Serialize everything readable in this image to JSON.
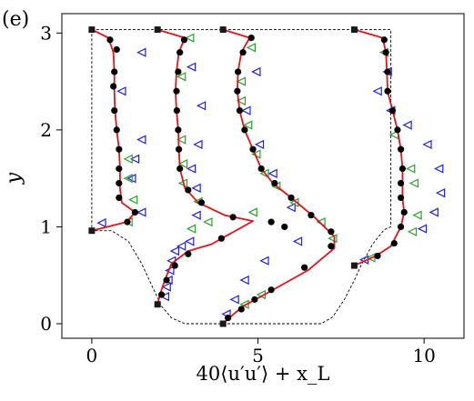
{
  "panel_label": "(e)",
  "chart_data": {
    "type": "line",
    "title": "",
    "xlabel": "40⟨u′u′⟩ + x_L",
    "ylabel": "y",
    "xlim": [
      -0.9,
      11.2
    ],
    "ylim": [
      -0.15,
      3.2
    ],
    "xticks": [
      0,
      5,
      10
    ],
    "xtick_labels": [
      "0",
      "5",
      "10"
    ],
    "yticks": [
      0,
      1,
      2,
      3
    ],
    "ytick_labels": [
      "0",
      "1",
      "2",
      "3"
    ],
    "grid": false,
    "legend": "none",
    "colors": {
      "line": "#e0141e",
      "dots": "#000000",
      "blue_triangles": "#1f1fe0",
      "green_triangles": "#2ca02c",
      "geometry": "#000000"
    },
    "geometry_outline": [
      [
        0,
        3.035
      ],
      [
        9.0,
        3.035
      ],
      [
        9.0,
        1.0
      ],
      [
        8.8,
        0.97
      ],
      [
        8.45,
        0.82
      ],
      [
        8.1,
        0.6
      ],
      [
        7.9,
        0.45
      ],
      [
        7.6,
        0.25
      ],
      [
        7.25,
        0.07
      ],
      [
        6.9,
        0.0
      ],
      [
        2.8,
        0.0
      ],
      [
        2.4,
        0.06
      ],
      [
        2.1,
        0.18
      ],
      [
        1.8,
        0.4
      ],
      [
        1.5,
        0.62
      ],
      [
        1.1,
        0.85
      ],
      [
        0.6,
        0.96
      ],
      [
        0,
        0.96
      ],
      [
        0,
        3.035
      ]
    ],
    "wall_markers": [
      {
        "x": 0,
        "y": 3.035
      },
      {
        "x": 0,
        "y": 0.96
      },
      {
        "x": 1.98,
        "y": 3.035
      },
      {
        "x": 1.98,
        "y": 0.2
      },
      {
        "x": 3.95,
        "y": 3.035
      },
      {
        "x": 3.95,
        "y": 0.0
      },
      {
        "x": 7.9,
        "y": 3.035
      },
      {
        "x": 7.9,
        "y": 0.6
      }
    ],
    "series": [
      {
        "points": [
          [
            0,
            3.035
          ],
          [
            0.5,
            2.95
          ],
          [
            0.65,
            2.8
          ],
          [
            0.68,
            2.6
          ],
          [
            0.68,
            2.4
          ],
          [
            0.7,
            2.2
          ],
          [
            0.75,
            2.0
          ],
          [
            0.82,
            1.8
          ],
          [
            0.85,
            1.6
          ],
          [
            0.85,
            1.4
          ],
          [
            0.9,
            1.25
          ],
          [
            1.3,
            1.15
          ],
          [
            1.05,
            1.05
          ],
          [
            0,
            0.96
          ]
        ],
        "dots": [
          [
            0.55,
            2.93
          ],
          [
            0.75,
            2.83
          ],
          [
            0.68,
            2.6
          ],
          [
            0.65,
            2.45
          ],
          [
            0.68,
            2.2
          ],
          [
            0.75,
            2.0
          ],
          [
            0.82,
            1.8
          ],
          [
            0.82,
            1.6
          ],
          [
            0.82,
            1.45
          ],
          [
            0.82,
            1.3
          ],
          [
            1.3,
            1.15
          ],
          [
            1.07,
            1.05
          ]
        ],
        "blue": [
          [
            1.5,
            2.8
          ],
          [
            0.9,
            2.4
          ],
          [
            1.5,
            1.9
          ],
          [
            1.3,
            1.7
          ],
          [
            1.2,
            1.5
          ],
          [
            1.5,
            1.15
          ],
          [
            0.3,
            1.04
          ]
        ],
        "green": [
          [
            1.1,
            1.7
          ],
          [
            1.1,
            1.5
          ],
          [
            1.25,
            1.28
          ],
          [
            1.1,
            1.05
          ]
        ]
      },
      {
        "points": [
          [
            1.98,
            3.035
          ],
          [
            2.8,
            2.95
          ],
          [
            2.62,
            2.8
          ],
          [
            2.55,
            2.6
          ],
          [
            2.52,
            2.4
          ],
          [
            2.55,
            2.2
          ],
          [
            2.6,
            2.0
          ],
          [
            2.62,
            1.8
          ],
          [
            2.65,
            1.6
          ],
          [
            2.8,
            1.4
          ],
          [
            3.2,
            1.25
          ],
          [
            4.0,
            1.12
          ],
          [
            4.85,
            1.06
          ],
          [
            3.6,
            0.82
          ],
          [
            2.9,
            0.75
          ],
          [
            2.4,
            0.62
          ],
          [
            2.2,
            0.45
          ],
          [
            2.05,
            0.3
          ],
          [
            1.98,
            0.2
          ]
        ],
        "dots": [
          [
            2.78,
            2.93
          ],
          [
            2.65,
            2.8
          ],
          [
            2.6,
            2.6
          ],
          [
            2.55,
            2.4
          ],
          [
            2.56,
            2.2
          ],
          [
            2.6,
            2.0
          ],
          [
            2.62,
            1.8
          ],
          [
            2.65,
            1.6
          ],
          [
            2.9,
            1.38
          ],
          [
            3.3,
            1.25
          ],
          [
            4.25,
            1.1
          ],
          [
            3.9,
            0.88
          ],
          [
            2.9,
            0.72
          ],
          [
            2.5,
            0.6
          ],
          [
            2.25,
            0.45
          ],
          [
            2.1,
            0.3
          ]
        ],
        "blue": [
          [
            3.0,
            2.65
          ],
          [
            3.3,
            2.25
          ],
          [
            3.2,
            1.85
          ],
          [
            3.0,
            1.6
          ],
          [
            3.15,
            1.4
          ],
          [
            3.15,
            1.12
          ],
          [
            2.95,
            0.85
          ],
          [
            2.7,
            0.8
          ],
          [
            2.5,
            0.75
          ],
          [
            2.4,
            0.65
          ],
          [
            2.35,
            0.55
          ],
          [
            2.3,
            0.45
          ],
          [
            2.25,
            0.38
          ],
          [
            2.2,
            0.28
          ]
        ],
        "green": [
          [
            2.95,
            2.95
          ],
          [
            2.7,
            2.55
          ],
          [
            2.7,
            1.9
          ],
          [
            2.75,
            1.65
          ],
          [
            2.75,
            1.45
          ],
          [
            3.2,
            1.26
          ],
          [
            4.85,
            1.15
          ],
          [
            3.5,
            1.05
          ],
          [
            3.0,
            0.98
          ]
        ]
      },
      {
        "points": [
          [
            3.95,
            3.035
          ],
          [
            4.75,
            2.95
          ],
          [
            4.5,
            2.8
          ],
          [
            4.4,
            2.6
          ],
          [
            4.38,
            2.4
          ],
          [
            4.45,
            2.2
          ],
          [
            4.6,
            2.0
          ],
          [
            4.85,
            1.8
          ],
          [
            5.1,
            1.6
          ],
          [
            5.45,
            1.45
          ],
          [
            6.0,
            1.3
          ],
          [
            6.7,
            1.1
          ],
          [
            7.3,
            0.9
          ],
          [
            7.3,
            0.78
          ],
          [
            6.5,
            0.55
          ],
          [
            5.3,
            0.32
          ],
          [
            4.55,
            0.18
          ],
          [
            4.1,
            0.05
          ],
          [
            3.95,
            0.0
          ]
        ],
        "dots": [
          [
            4.8,
            2.95
          ],
          [
            4.55,
            2.8
          ],
          [
            4.4,
            2.6
          ],
          [
            4.38,
            2.4
          ],
          [
            4.45,
            2.2
          ],
          [
            4.6,
            2.0
          ],
          [
            4.85,
            1.8
          ],
          [
            5.1,
            1.6
          ],
          [
            5.5,
            1.45
          ],
          [
            6.0,
            1.3
          ],
          [
            6.6,
            1.12
          ],
          [
            7.2,
            0.95
          ],
          [
            7.2,
            0.8
          ],
          [
            6.4,
            0.58
          ],
          [
            5.4,
            0.35
          ],
          [
            4.9,
            0.25
          ],
          [
            4.5,
            0.15
          ],
          [
            4.1,
            0.06
          ],
          [
            5.4,
            1.05
          ],
          [
            5.8,
            1.0
          ]
        ],
        "blue": [
          [
            4.95,
            2.6
          ],
          [
            4.65,
            2.2
          ],
          [
            5.05,
            1.85
          ],
          [
            5.45,
            1.55
          ],
          [
            6.0,
            1.2
          ],
          [
            6.2,
            0.85
          ],
          [
            5.2,
            0.65
          ],
          [
            4.6,
            0.45
          ],
          [
            4.3,
            0.25
          ],
          [
            4.05,
            0.1
          ]
        ],
        "green": [
          [
            4.8,
            2.85
          ],
          [
            4.5,
            2.5
          ],
          [
            4.5,
            2.3
          ],
          [
            4.7,
            2.05
          ],
          [
            4.95,
            1.75
          ],
          [
            5.2,
            1.55
          ],
          [
            5.55,
            1.42
          ],
          [
            6.1,
            1.25
          ],
          [
            6.9,
            1.05
          ],
          [
            7.25,
            0.88
          ],
          [
            5.1,
            0.3
          ],
          [
            4.6,
            0.2
          ]
        ]
      },
      {
        "points": [
          [
            7.9,
            3.035
          ],
          [
            8.75,
            2.95
          ],
          [
            8.85,
            2.8
          ],
          [
            8.88,
            2.6
          ],
          [
            8.9,
            2.4
          ],
          [
            9.05,
            2.2
          ],
          [
            9.2,
            2.0
          ],
          [
            9.3,
            1.8
          ],
          [
            9.35,
            1.6
          ],
          [
            9.35,
            1.45
          ],
          [
            9.35,
            1.3
          ],
          [
            9.4,
            1.15
          ],
          [
            9.3,
            1.0
          ],
          [
            9.0,
            0.8
          ],
          [
            8.55,
            0.7
          ],
          [
            7.9,
            0.6
          ]
        ],
        "dots": [
          [
            8.8,
            2.93
          ],
          [
            8.85,
            2.8
          ],
          [
            8.9,
            2.6
          ],
          [
            8.9,
            2.4
          ],
          [
            9.05,
            2.2
          ],
          [
            9.2,
            2.0
          ],
          [
            9.3,
            1.8
          ],
          [
            9.35,
            1.6
          ],
          [
            9.3,
            1.45
          ],
          [
            9.3,
            1.3
          ],
          [
            9.4,
            1.15
          ],
          [
            9.3,
            1.0
          ],
          [
            9.1,
            0.83
          ],
          [
            8.6,
            0.7
          ]
        ],
        "blue": [
          [
            8.9,
            2.6
          ],
          [
            8.6,
            2.4
          ],
          [
            9.0,
            2.2
          ],
          [
            9.5,
            2.05
          ],
          [
            10.1,
            1.85
          ],
          [
            10.45,
            1.6
          ],
          [
            10.5,
            1.35
          ],
          [
            10.3,
            1.15
          ],
          [
            9.95,
            0.98
          ],
          [
            8.2,
            0.66
          ]
        ],
        "green": [
          [
            8.8,
            2.8
          ],
          [
            9.1,
            1.95
          ],
          [
            9.6,
            1.6
          ],
          [
            9.7,
            1.45
          ],
          [
            9.8,
            1.12
          ],
          [
            9.65,
            0.95
          ],
          [
            8.4,
            0.68
          ]
        ]
      }
    ]
  }
}
